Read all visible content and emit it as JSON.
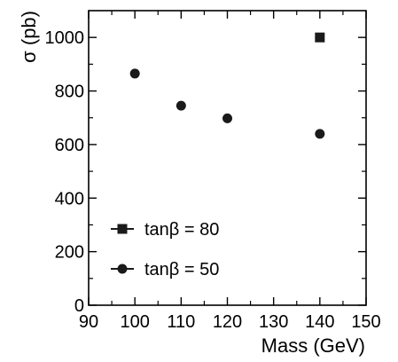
{
  "chart_data": {
    "type": "scatter",
    "xlabel": "Mass (GeV)",
    "ylabel": "σ (pb)",
    "xlim": [
      90,
      150
    ],
    "ylim": [
      0,
      1100
    ],
    "x_ticks": [
      90,
      100,
      110,
      120,
      130,
      140,
      150
    ],
    "y_ticks": [
      0,
      200,
      400,
      600,
      800,
      1000
    ],
    "grid": false,
    "legend_position": "bottom-left",
    "series": [
      {
        "name": "tanβ = 80",
        "marker": "square",
        "color": "#1a1a1a",
        "points": [
          {
            "x": 140,
            "y": 1000
          }
        ]
      },
      {
        "name": "tanβ = 50",
        "marker": "circle",
        "color": "#1a1a1a",
        "points": [
          {
            "x": 100,
            "y": 865
          },
          {
            "x": 110,
            "y": 745
          },
          {
            "x": 120,
            "y": 698
          },
          {
            "x": 140,
            "y": 640
          }
        ]
      }
    ]
  }
}
